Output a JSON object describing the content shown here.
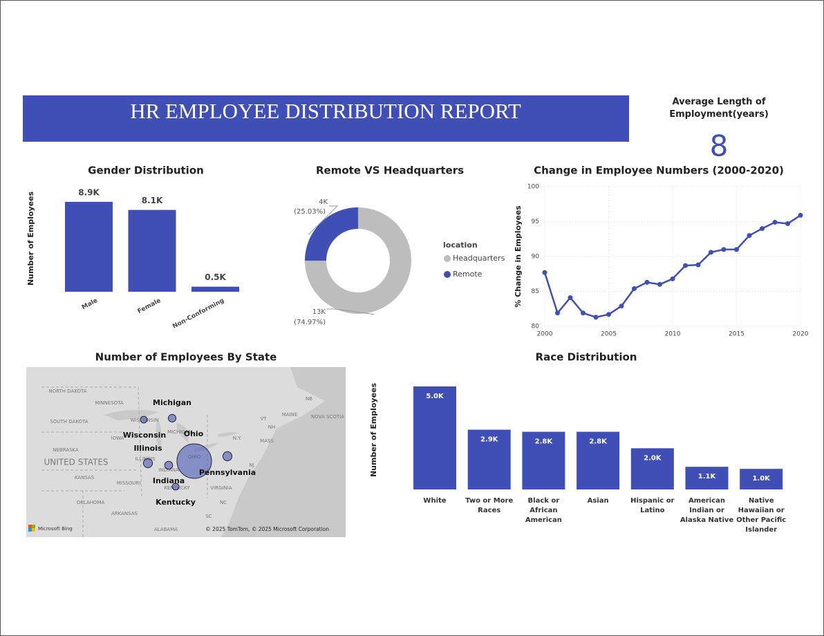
{
  "title": "HR EMPLOYEE DISTRIBUTION REPORT",
  "kpi": {
    "label": "Average Length of Employment(years)",
    "value": 8
  },
  "chart_data": [
    {
      "type": "bar",
      "title": "Gender Distribution",
      "y_label": "Number of Employees",
      "categories": [
        "Male",
        "Female",
        "Non-Conforming"
      ],
      "values": [
        8900,
        8100,
        500
      ],
      "value_labels": [
        "8.9K",
        "8.1K",
        "0.5K"
      ],
      "color": "#3f4fb5"
    },
    {
      "type": "donut",
      "title": "Remote VS Headquarters",
      "legend_title": "location",
      "categories": [
        "Headquarters",
        "Remote"
      ],
      "values": [
        74.97,
        25.03
      ],
      "value_labels": [
        "(74.97%)",
        "(25.03%)"
      ],
      "counts": [
        13000,
        4000
      ],
      "count_labels": [
        "13K",
        "4K"
      ],
      "colors": [
        "#bdbdbd",
        "#3f4fb5"
      ],
      "legend": "right"
    },
    {
      "type": "line",
      "title": "Change in Employee Numbers (2000-2020)",
      "y_label": "% Change in Employees",
      "x": [
        2000,
        2001,
        2002,
        2003,
        2004,
        2005,
        2006,
        2007,
        2008,
        2009,
        2010,
        2011,
        2012,
        2013,
        2014,
        2015,
        2016,
        2017,
        2018,
        2019,
        2020
      ],
      "values": [
        87.7,
        81.9,
        84.1,
        81.9,
        81.3,
        81.7,
        82.9,
        85.4,
        86.3,
        86.0,
        86.8,
        88.7,
        88.8,
        90.6,
        91.0,
        91.0,
        93.0,
        94.0,
        94.9,
        94.7,
        95.9
      ],
      "xlim": [
        2000,
        2020
      ],
      "ylim": [
        80,
        100
      ],
      "xticks": [
        2000,
        2005,
        2010,
        2015,
        2020
      ],
      "yticks": [
        80,
        85,
        90,
        95,
        100
      ],
      "grid": true,
      "color": "#3f4fb5"
    },
    {
      "type": "map",
      "title": "Number of Employees By State",
      "categories": [
        "Michigan",
        "Wisconsin",
        "Ohio",
        "Illinois",
        "Pennsylvania",
        "Indiana",
        "Kentucky"
      ],
      "values": [
        650,
        500,
        13000,
        900,
        900,
        700,
        500
      ],
      "color": "#3f4fb5",
      "base_labels": [
        "NORTH DAKOTA",
        "MINNESOTA",
        "SOUTH DAKOTA",
        "WISCONSIN",
        "MICHIGAN",
        "IOWA",
        "NEBRASKA",
        "UNITED STATES",
        "ILLINOIS",
        "INDIANA",
        "OHIO",
        "KANSAS",
        "MISSOURI",
        "KENTUCKY",
        "VIRGINIA",
        "OKLAHOMA",
        "ARKANSAS",
        "NC",
        "SC",
        "ALABAMA",
        "N.Y.",
        "MASS",
        "VT",
        "NH",
        "MAINE",
        "NB",
        "NOVA SCOTIA",
        "NJ"
      ],
      "attribution": [
        "Microsoft Bing",
        "© 2025 TomTom, © 2025 Microsoft Corporation"
      ]
    },
    {
      "type": "bar",
      "title": "Race Distribution",
      "y_label": "Number of Employees",
      "categories": [
        "White",
        "Two or More Races",
        "Black or African American",
        "Asian",
        "Hispanic or Latino",
        "American Indian or Alaska Native",
        "Native Hawaiian or Other Pacific Islander"
      ],
      "values": [
        5000,
        2900,
        2800,
        2800,
        2000,
        1100,
        1000
      ],
      "value_labels": [
        "5.0K",
        "2.9K",
        "2.8K",
        "2.8K",
        "2.0K",
        "1.1K",
        "1.0K"
      ],
      "color": "#3f4fb5"
    }
  ]
}
